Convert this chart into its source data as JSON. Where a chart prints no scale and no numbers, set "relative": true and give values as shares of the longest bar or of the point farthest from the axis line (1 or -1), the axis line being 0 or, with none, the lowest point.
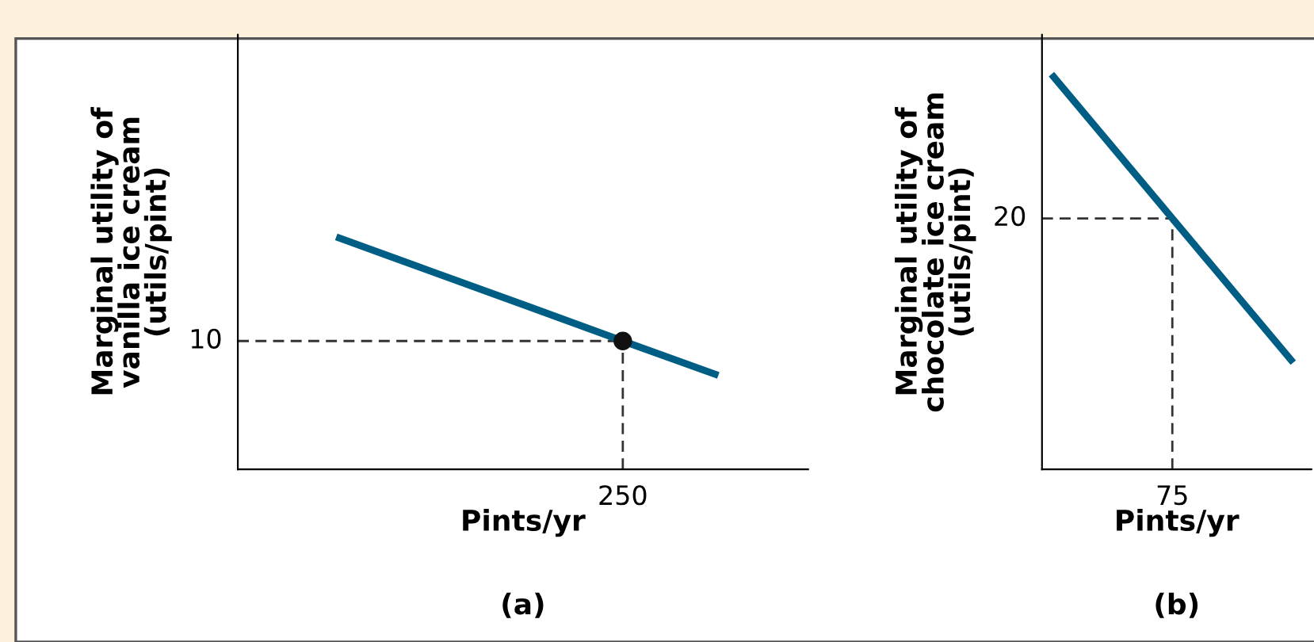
{
  "chart_data": [
    {
      "type": "line",
      "relative": true,
      "xlabel": "Pints/yr",
      "ylabel": "Marginal utility of\nvanilla ice cream\n(utils/pint)",
      "annotations": [
        "(a)",
        "250",
        "10"
      ],
      "categories": [
        null,
        null,
        null,
        null,
        null
      ],
      "series": [
        {
          "color": "#005e85",
          "values": [
            1,
            0.851,
            0.702,
            0.552,
            0.404
          ],
          "line_style": "solid"
        }
      ],
      "ref_lines": [
        {
          "axis": "y",
          "value": 0.552,
          "color": "#333333",
          "line_style": "dashed"
        }
      ]
    },
    {
      "type": "line",
      "relative": true,
      "xlabel": "Pints/yr",
      "ylabel": "Marginal utility of\nchocolate ice cream\n(utils/pint)",
      "annotations": [
        "(b)",
        "75",
        "20"
      ],
      "categories": [
        null,
        null,
        null
      ],
      "series": [
        {
          "color": "#005e85",
          "values": [
            1,
            0.635,
            0.27
          ],
          "line_style": "solid"
        }
      ],
      "ref_lines": [
        {
          "axis": "y",
          "value": 0.635,
          "color": "#333333",
          "line_style": "dashed"
        }
      ]
    }
  ]
}
